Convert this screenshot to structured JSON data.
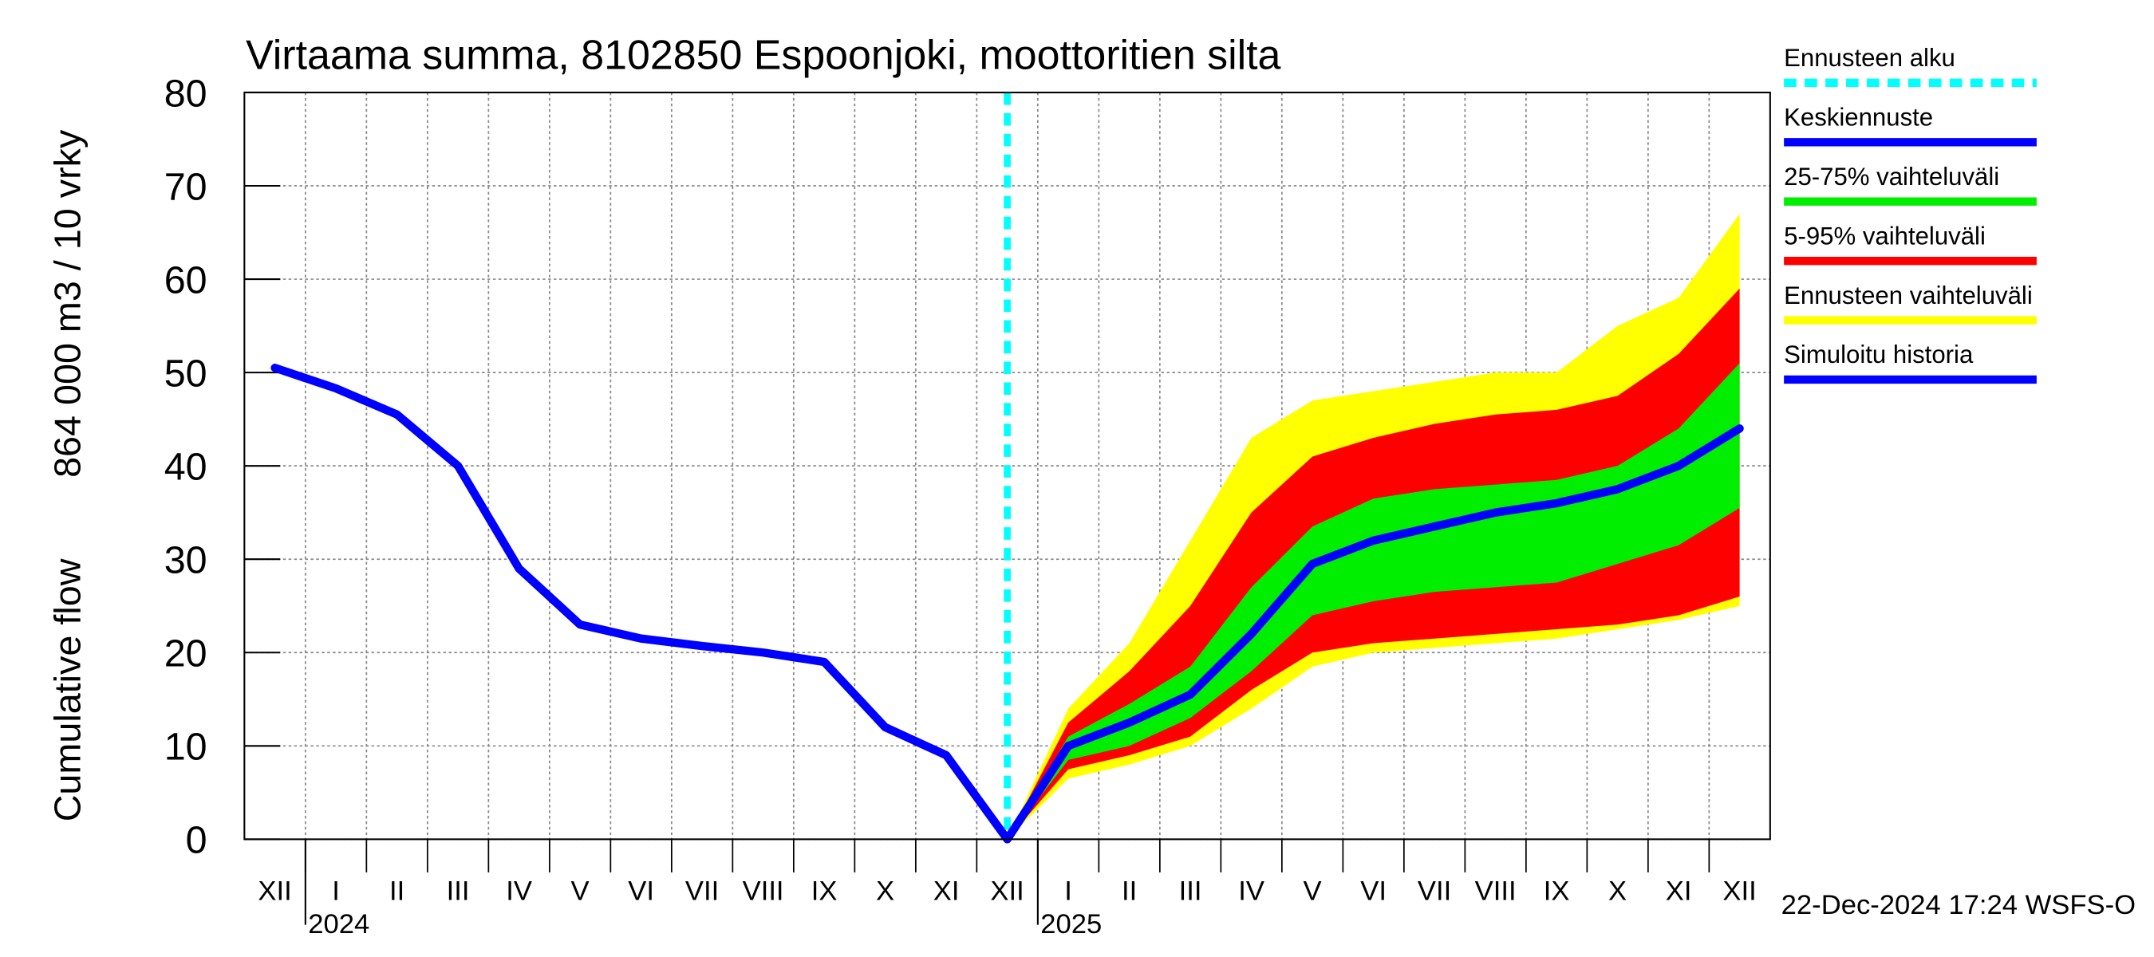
{
  "chart_data": {
    "type": "band-forecast",
    "title": "Virtaama summa, 8102850 Espoonjoki, moottoritien silta",
    "ylabel": [
      "Cumulative flow",
      "864 000 m3 / 10 vrky"
    ],
    "footer": "22-Dec-2024 17:24 WSFS-O",
    "categories": [
      "XII",
      "I",
      "II",
      "III",
      "IV",
      "V",
      "VI",
      "VII",
      "VIII",
      "IX",
      "X",
      "XI",
      "XII",
      "I",
      "II",
      "III",
      "IV",
      "V",
      "VI",
      "VII",
      "VIII",
      "IX",
      "X",
      "XI",
      "XII"
    ],
    "years": [
      "2024",
      "2025"
    ],
    "ylim": [
      0,
      80
    ],
    "yticks": [
      0,
      10,
      20,
      30,
      40,
      50,
      60,
      70,
      80
    ],
    "grid": true,
    "forecast_start": {
      "name": "Ennusteen alku",
      "color": "#00ffff"
    },
    "series": [
      {
        "name": "Keskiennuste",
        "color": "#0000ff",
        "values": [
          null,
          null,
          null,
          null,
          null,
          null,
          null,
          null,
          null,
          null,
          null,
          null,
          0,
          10,
          12.5,
          15.5,
          22,
          29.5,
          32,
          33.5,
          35,
          36,
          37.5,
          40,
          44
        ]
      },
      {
        "name": "Simuloitu historia",
        "color": "#0000ff",
        "values": [
          50.5,
          48.3,
          45.5,
          40,
          29,
          23,
          21.5,
          20.7,
          20,
          19,
          12,
          9,
          0,
          null,
          null,
          null,
          null,
          null,
          null,
          null,
          null,
          null,
          null,
          null,
          null
        ]
      }
    ],
    "bands": [
      {
        "name": "25-75% vaihteluväli",
        "color": "#00ee00",
        "low": [
          null,
          null,
          null,
          null,
          null,
          null,
          null,
          null,
          null,
          null,
          null,
          null,
          0,
          8.5,
          10,
          13,
          18,
          24,
          25.5,
          26.5,
          27,
          27.5,
          29.5,
          31.5,
          35.5
        ],
        "high": [
          null,
          null,
          null,
          null,
          null,
          null,
          null,
          null,
          null,
          null,
          null,
          null,
          0,
          11,
          14.5,
          18.5,
          27,
          33.5,
          36.5,
          37.5,
          38,
          38.5,
          40,
          44,
          51
        ]
      },
      {
        "name": "5-95% vaihteluväli",
        "color": "#ff0000",
        "low": [
          null,
          null,
          null,
          null,
          null,
          null,
          null,
          null,
          null,
          null,
          null,
          null,
          0,
          7.5,
          9,
          11,
          16,
          20,
          21,
          21.5,
          22,
          22.5,
          23,
          24,
          26
        ],
        "high": [
          null,
          null,
          null,
          null,
          null,
          null,
          null,
          null,
          null,
          null,
          null,
          null,
          0,
          12.5,
          18,
          25,
          35,
          41,
          43,
          44.5,
          45.5,
          46,
          47.5,
          52,
          59
        ]
      },
      {
        "name": "Ennusteen vaihteluväli",
        "color": "#ffff00",
        "low": [
          null,
          null,
          null,
          null,
          null,
          null,
          null,
          null,
          null,
          null,
          null,
          null,
          0,
          6.5,
          8,
          10,
          14,
          18.5,
          20,
          20.5,
          21,
          21.5,
          22.5,
          23.5,
          25
        ],
        "high": [
          null,
          null,
          null,
          null,
          null,
          null,
          null,
          null,
          null,
          null,
          null,
          null,
          0,
          14,
          21,
          32,
          43,
          47,
          48,
          49,
          50,
          50,
          55,
          58,
          67
        ]
      }
    ]
  }
}
